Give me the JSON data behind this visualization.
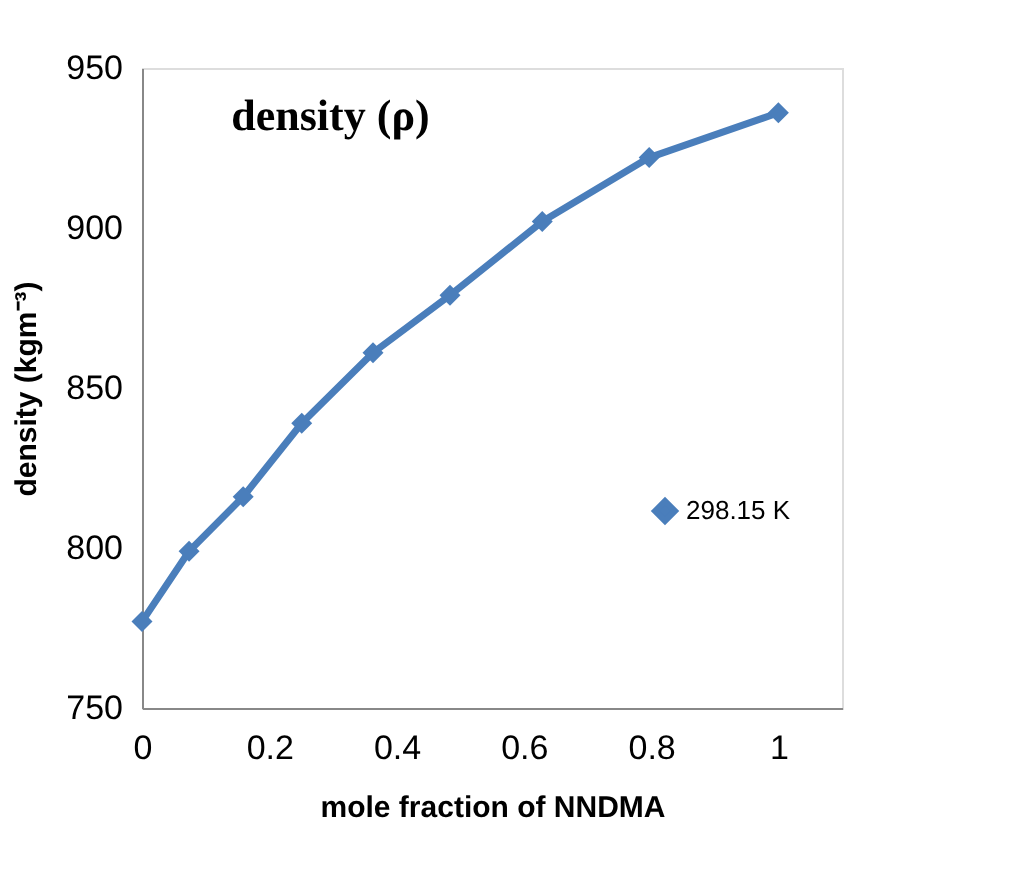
{
  "chart_data": {
    "type": "line",
    "title": "density (ρ)",
    "xlabel": "mole fraction of NNDMA",
    "ylabel": "density (kgm⁻³)",
    "series": [
      {
        "name": "298.15 K",
        "color": "#4a7ebb",
        "x": [
          0,
          0.074,
          0.159,
          0.251,
          0.363,
          0.484,
          0.629,
          0.797,
          1
        ],
        "values": [
          777,
          799,
          816,
          839,
          861,
          879,
          902,
          922,
          936
        ]
      }
    ],
    "xlim": [
      0,
      1.1
    ],
    "xticks": [
      0,
      0.2,
      0.4,
      0.6,
      0.8,
      1
    ],
    "ylim": [
      750,
      950
    ],
    "yticks": [
      750,
      800,
      850,
      900,
      950
    ],
    "grid": false,
    "legend": "right",
    "marker": "diamond",
    "line_style": "solid"
  }
}
